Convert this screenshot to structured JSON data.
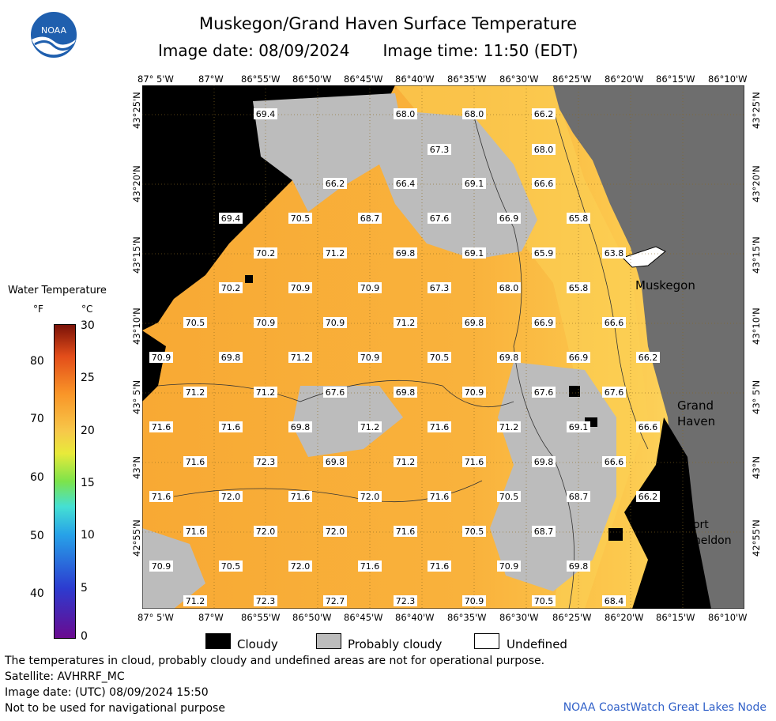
{
  "title": "Muskegon/Grand Haven Surface Temperature",
  "image_date_label": "Image date: 08/09/2024",
  "image_time_label": "Image time: 11:50 (EDT)",
  "logo_text": "NOAA",
  "longitude_labels": [
    "87° 5'W",
    "87°W",
    "86°55'W",
    "86°50'W",
    "86°45'W",
    "86°40'W",
    "86°35'W",
    "86°30'W",
    "86°25'W",
    "86°20'W",
    "86°15'W",
    "86°10'W"
  ],
  "latitude_labels": [
    "43°25'N",
    "43°20'N",
    "43°15'N",
    "43°10'N",
    "43° 5'N",
    "43°N",
    "42°55'N"
  ],
  "places": [
    "Muskegon",
    "Grand",
    "Haven",
    "Port",
    "Sheldon"
  ],
  "temperature_labels": [
    [
      "69.4",
      "68.0",
      "68.0",
      "66.2"
    ],
    [
      "67.3",
      "68.0"
    ],
    [
      "66.2",
      "66.4",
      "69.1",
      "66.6"
    ],
    [
      "69.4",
      "70.5",
      "68.7",
      "67.6",
      "66.9",
      "65.8"
    ],
    [
      "70.2",
      "71.2",
      "69.8",
      "69.1",
      "65.9",
      "63.8"
    ],
    [
      "70.2",
      "70.9",
      "70.9",
      "67.3",
      "68.0",
      "65.8"
    ],
    [
      "70.5",
      "70.9",
      "70.9",
      "71.2",
      "69.8",
      "66.9",
      "66.6"
    ],
    [
      "70.9",
      "69.8",
      "71.2",
      "70.9",
      "70.5",
      "69.8",
      "66.9",
      "66.2"
    ],
    [
      "71.2",
      "71.2",
      "67.6",
      "69.8",
      "70.9",
      "67.6",
      "67.6"
    ],
    [
      "71.6",
      "71.6",
      "69.8",
      "71.2",
      "71.6",
      "71.2",
      "69.1",
      "66.6"
    ],
    [
      "71.6",
      "72.3",
      "69.8",
      "71.2",
      "71.6",
      "69.8",
      "66.6"
    ],
    [
      "71.6",
      "72.0",
      "71.6",
      "72.0",
      "71.6",
      "70.5",
      "68.7",
      "66.2"
    ],
    [
      "71.6",
      "72.0",
      "72.0",
      "71.6",
      "70.5",
      "68.7"
    ],
    [
      "70.9",
      "70.5",
      "72.0",
      "71.6",
      "71.6",
      "70.9",
      "69.8"
    ],
    [
      "71.2",
      "72.3",
      "72.7",
      "72.3",
      "70.9",
      "70.5",
      "68.4"
    ]
  ],
  "colorbar": {
    "title": "Water Temperature",
    "unit_f": "°F",
    "unit_c": "°C",
    "f_ticks": [
      "80",
      "70",
      "60",
      "50",
      "40"
    ],
    "c_ticks": [
      "30",
      "25",
      "20",
      "15",
      "10",
      "5",
      "0"
    ]
  },
  "legend": {
    "cloudy": "Cloudy",
    "probably_cloudy": "Probably cloudy",
    "undefined": "Undefined"
  },
  "notes": {
    "line1": "The temperatures in cloud, probably cloudy and undefined areas are not for operational purpose.",
    "line2": "Satellite: AVHRRF_MC",
    "line3": "Image date: (UTC) 08/09/2024  15:50",
    "line4": "Not to be used for navigational purpose"
  },
  "credit": "NOAA CoastWatch Great Lakes Node",
  "colors": {
    "water_warm": "#f8a934",
    "water_cool": "#fdd75a",
    "cloud": "#000000",
    "probably_cloud": "#bcbcbc",
    "land": "#6e6e6e"
  }
}
